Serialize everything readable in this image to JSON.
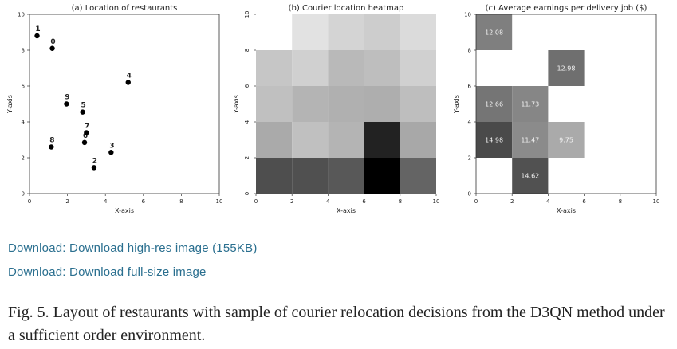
{
  "chart_data": [
    {
      "type": "scatter",
      "title": "(a) Location of restaurants",
      "xlabel": "X-axis",
      "ylabel": "Y-axis",
      "xlim": [
        0,
        10
      ],
      "ylim": [
        0,
        10
      ],
      "xticks": [
        0,
        2,
        4,
        6,
        8,
        10
      ],
      "yticks": [
        0,
        2,
        4,
        6,
        8,
        10
      ],
      "grid": false,
      "points": [
        {
          "label": "0",
          "x": 1.2,
          "y": 8.1
        },
        {
          "label": "1",
          "x": 0.4,
          "y": 8.8
        },
        {
          "label": "2",
          "x": 3.4,
          "y": 1.45
        },
        {
          "label": "3",
          "x": 4.3,
          "y": 2.3
        },
        {
          "label": "4",
          "x": 5.2,
          "y": 6.2
        },
        {
          "label": "5",
          "x": 2.8,
          "y": 4.55
        },
        {
          "label": "6",
          "x": 2.9,
          "y": 2.85
        },
        {
          "label": "7",
          "x": 3.0,
          "y": 3.4
        },
        {
          "label": "8",
          "x": 1.15,
          "y": 2.6
        },
        {
          "label": "9",
          "x": 1.95,
          "y": 5.0
        }
      ]
    },
    {
      "type": "heatmap",
      "title": "(b) Courier location heatmap",
      "xlabel": "X-axis",
      "ylabel": "Y-axis",
      "xlim": [
        0,
        10
      ],
      "ylim": [
        0,
        10
      ],
      "xticks": [
        0,
        2,
        4,
        6,
        8,
        10
      ],
      "yticks": [
        0,
        2,
        4,
        6,
        8,
        10
      ],
      "cell_size": 2,
      "note_shade": "gray level 0-255, darker = more couriers",
      "cells": [
        {
          "x": 2,
          "y": 8,
          "shade": 226
        },
        {
          "x": 4,
          "y": 8,
          "shade": 212
        },
        {
          "x": 6,
          "y": 8,
          "shade": 205
        },
        {
          "x": 8,
          "y": 8,
          "shade": 219
        },
        {
          "x": 0,
          "y": 6,
          "shade": 198
        },
        {
          "x": 2,
          "y": 6,
          "shade": 208
        },
        {
          "x": 4,
          "y": 6,
          "shade": 185
        },
        {
          "x": 6,
          "y": 6,
          "shade": 190
        },
        {
          "x": 8,
          "y": 6,
          "shade": 208
        },
        {
          "x": 0,
          "y": 4,
          "shade": 192
        },
        {
          "x": 2,
          "y": 4,
          "shade": 180
        },
        {
          "x": 4,
          "y": 4,
          "shade": 176
        },
        {
          "x": 6,
          "y": 4,
          "shade": 174
        },
        {
          "x": 8,
          "y": 4,
          "shade": 190
        },
        {
          "x": 0,
          "y": 2,
          "shade": 170
        },
        {
          "x": 2,
          "y": 2,
          "shade": 192
        },
        {
          "x": 4,
          "y": 2,
          "shade": 180
        },
        {
          "x": 6,
          "y": 2,
          "shade": 34
        },
        {
          "x": 8,
          "y": 2,
          "shade": 168
        },
        {
          "x": 0,
          "y": 0,
          "shade": 78
        },
        {
          "x": 2,
          "y": 0,
          "shade": 80
        },
        {
          "x": 4,
          "y": 0,
          "shade": 88
        },
        {
          "x": 6,
          "y": 0,
          "shade": 0
        },
        {
          "x": 8,
          "y": 0,
          "shade": 100
        }
      ]
    },
    {
      "type": "heatmap",
      "title": "(c) Average earnings per delivery job ($)",
      "xlabel": "X-axis",
      "ylabel": "Y-axis",
      "xlim": [
        0,
        10
      ],
      "ylim": [
        0,
        10
      ],
      "xticks": [
        0,
        2,
        4,
        6,
        8,
        10
      ],
      "yticks": [
        0,
        2,
        4,
        6,
        8,
        10
      ],
      "cell_size": 2,
      "cells": [
        {
          "x": 0,
          "y": 8,
          "value": 12.08
        },
        {
          "x": 4,
          "y": 6,
          "value": 12.98
        },
        {
          "x": 0,
          "y": 4,
          "value": 12.66
        },
        {
          "x": 2,
          "y": 4,
          "value": 11.73
        },
        {
          "x": 0,
          "y": 2,
          "value": 14.98
        },
        {
          "x": 2,
          "y": 2,
          "value": 11.47
        },
        {
          "x": 4,
          "y": 2,
          "value": 9.75
        },
        {
          "x": 2,
          "y": 0,
          "value": 14.62
        }
      ]
    }
  ],
  "links": {
    "high_res": "Download: Download high-res image (155KB)",
    "full_size": "Download: Download full-size image"
  },
  "caption": "Fig. 5. Layout of restaurants with sample of courier relocation decisions from the D3QN method under a sufficient order environment.",
  "colors": {
    "link": "#2a6f8f",
    "text": "#222222"
  }
}
